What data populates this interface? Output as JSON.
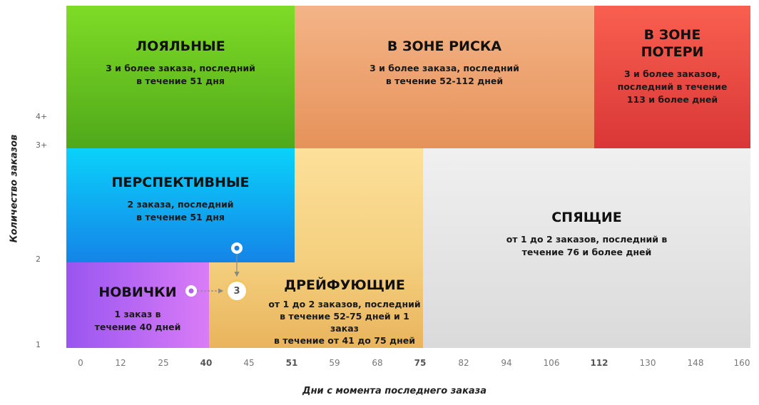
{
  "segments": {
    "loyal": {
      "title": "ЛОЯЛЬНЫЕ",
      "desc": "3 и более заказа, последний\nв течение 51 дня"
    },
    "risk": {
      "title": "В ЗОНЕ РИСКА",
      "desc": "3 и более заказа, последний\nв течение 52-112 дней"
    },
    "loss": {
      "title": "В ЗОНЕ\nПОТЕРИ",
      "desc": "3 и более заказов,\nпоследний в течение\n113 и более  дней"
    },
    "perspective": {
      "title": "ПЕРСПЕКТИВНЫЕ",
      "desc": "2 заказа, последний\nв течение 51 дня"
    },
    "newbies": {
      "title": "НОВИЧКИ",
      "desc": "1 заказ в\nтечение 40 дней"
    },
    "drifting": {
      "title": "ДРЕЙФУЮЩИЕ",
      "desc": "от 1 до 2 заказов, последний\nв течение 52-75 дней и 1 заказ\nв течение от 41 до 75 дней"
    },
    "sleeping": {
      "title": "СПЯЩИЕ",
      "desc": "от 1 до 2 заказов, последний в\nтечение 76 и более дней"
    }
  },
  "y_axis": {
    "title": "Количество заказов",
    "ticks": [
      "4+",
      "3+",
      "2",
      "1"
    ]
  },
  "x_axis": {
    "title": "Дни с момента последнего заказа",
    "ticks": [
      "0",
      "12",
      "25",
      "40",
      "45",
      "51",
      "59",
      "68",
      "75",
      "82",
      "94",
      "106",
      "112",
      "130",
      "148",
      "160"
    ],
    "bold_ticks": [
      "40",
      "51",
      "75",
      "112"
    ]
  },
  "transition_marker": {
    "label": "3"
  },
  "colors": {
    "loyal": "#62c11f",
    "risk": "#eda06e",
    "loss": "#e94a40",
    "perspective": "#0aaef0",
    "newbies": "#bb6af4",
    "drifting": "#f0c770",
    "sleeping": "#e6e6e6",
    "marker": "#f4c35a"
  }
}
